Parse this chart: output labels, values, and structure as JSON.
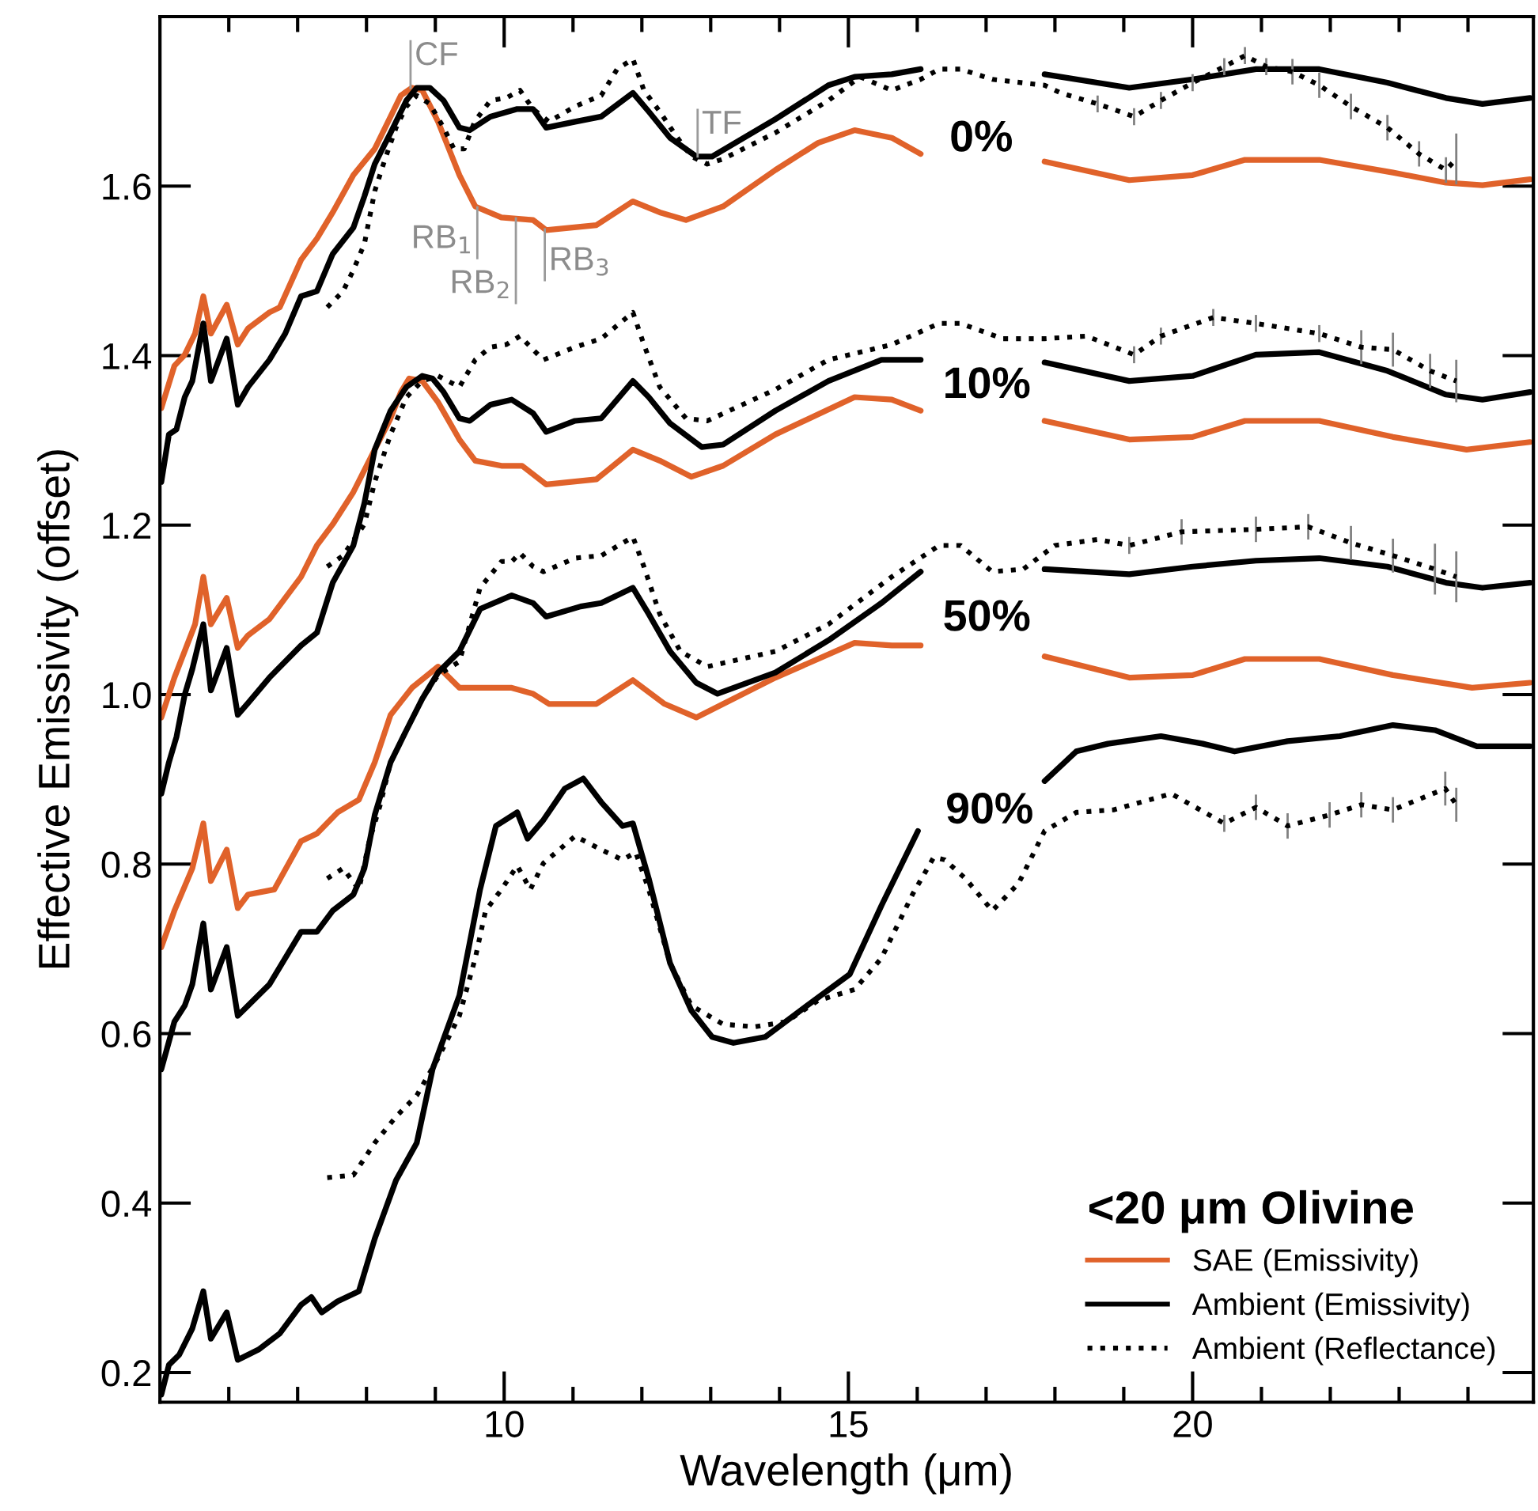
{
  "chart_data": {
    "type": "line",
    "xlabel": "Wavelength (μm)",
    "ylabel": "Effective Emissivity (offset)",
    "legend_title": "<20 μm Olivine",
    "legend": "bottom right",
    "grid": false,
    "xlim": [
      5,
      24.95
    ],
    "ylim": [
      0.165,
      1.8
    ],
    "xticks": [
      {
        "value": 6,
        "label": null
      },
      {
        "value": 7,
        "label": null
      },
      {
        "value": 8,
        "label": null
      },
      {
        "value": 9,
        "label": null
      },
      10,
      {
        "value": 11,
        "label": null
      },
      {
        "value": 12,
        "label": null
      },
      {
        "value": 13,
        "label": null
      },
      {
        "value": 14,
        "label": null
      },
      15,
      {
        "value": 16,
        "label": null
      },
      {
        "value": 17,
        "label": null
      },
      {
        "value": 18,
        "label": null
      },
      {
        "value": 19,
        "label": null
      },
      20,
      {
        "value": 21,
        "label": null
      },
      {
        "value": 22,
        "label": null
      },
      {
        "value": 23,
        "label": null
      },
      {
        "value": 24,
        "label": null
      }
    ],
    "yticks": [
      {
        "value": 0.2,
        "label": "0.2"
      },
      {
        "value": 0.4,
        "label": "0.4"
      },
      {
        "value": 0.6,
        "label": "0.6"
      },
      {
        "value": 0.8,
        "label": "0.8"
      },
      {
        "value": 1.0,
        "label": "1.0"
      },
      {
        "value": 1.2,
        "label": "1.2"
      },
      {
        "value": 1.4,
        "label": "1.4"
      },
      {
        "value": 1.6,
        "label": "1.6"
      }
    ],
    "annotations": [
      {
        "text": "CF",
        "x": 8.64,
        "y": 1.716
      },
      {
        "text": "RB$_{1}$",
        "x": 9.61,
        "y": 1.575
      },
      {
        "text": "RB$_{2}$",
        "x": 10.17,
        "y": 1.562
      },
      {
        "text": "RB$_{3}$",
        "x": 10.59,
        "y": 1.549
      },
      {
        "text": "TF",
        "x": 12.81,
        "y": 1.635
      },
      "0%",
      "10%",
      "50%",
      "90%"
    ],
    "series": [
      {
        "name": "SAE (Emissivity)",
        "color": "#e0622a",
        "line_style": "solid",
        "x": [
          5.02,
          5.21,
          5.36,
          5.51,
          5.63,
          5.74,
          5.97,
          6.13,
          6.28,
          6.59,
          6.74,
          7.05,
          7.28,
          7.51,
          7.81,
          8.12,
          8.35,
          8.5,
          8.66,
          8.81,
          9.04,
          9.35,
          9.58,
          9.96,
          10.42,
          10.61,
          11.34,
          11.87,
          12.26,
          12.64,
          13.18,
          13.94,
          14.56,
          15.09,
          15.63,
          16.05,
          17.0,
          17.85,
          19.08,
          20.0,
          20.76,
          21.84,
          22.91,
          23.68,
          24.21,
          24.9
        ],
        "values": [
          1.338,
          1.388,
          1.401,
          1.426,
          1.47,
          1.426,
          1.46,
          1.413,
          1.432,
          1.451,
          1.457,
          1.513,
          1.538,
          1.569,
          1.613,
          1.644,
          1.682,
          1.707,
          1.716,
          1.713,
          1.676,
          1.613,
          1.576,
          1.563,
          1.56,
          1.548,
          1.554,
          1.582,
          1.569,
          1.56,
          1.576,
          1.619,
          1.651,
          1.666,
          1.657,
          1.638,
          null,
          1.629,
          1.607,
          1.613,
          1.631,
          1.631,
          1.616,
          1.604,
          1.601,
          1.608
        ]
      },
      {
        "name": "Ambient (Emissivity)",
        "color": "#000000",
        "line_style": "solid",
        "x": [
          5.02,
          5.13,
          5.24,
          5.36,
          5.47,
          5.63,
          5.74,
          5.97,
          6.13,
          6.28,
          6.59,
          6.82,
          7.05,
          7.28,
          7.51,
          7.81,
          7.97,
          8.12,
          8.35,
          8.58,
          8.73,
          8.92,
          9.12,
          9.35,
          9.5,
          9.8,
          10.19,
          10.42,
          10.61,
          11.03,
          11.41,
          11.87,
          12.1,
          12.41,
          12.79,
          13.02,
          13.94,
          14.71,
          15.09,
          15.63,
          16.05,
          17.0,
          17.85,
          19.08,
          20.0,
          20.92,
          21.84,
          22.83,
          23.68,
          24.21,
          24.9
        ],
        "values": [
          1.251,
          1.307,
          1.313,
          1.351,
          1.37,
          1.438,
          1.37,
          1.42,
          1.342,
          1.363,
          1.395,
          1.426,
          1.47,
          1.476,
          1.52,
          1.551,
          1.588,
          1.626,
          1.663,
          1.701,
          1.716,
          1.716,
          1.701,
          1.669,
          1.666,
          1.682,
          1.691,
          1.691,
          1.669,
          1.676,
          1.682,
          1.71,
          1.688,
          1.657,
          1.635,
          1.635,
          1.679,
          1.719,
          1.729,
          1.732,
          1.738,
          null,
          1.732,
          1.716,
          1.726,
          1.738,
          1.738,
          1.722,
          1.704,
          1.697,
          1.704
        ]
      },
      {
        "name": "Ambient (Reflectance)",
        "color": "#000000",
        "line_style": "dotted",
        "x": [
          7.43,
          7.66,
          7.81,
          7.97,
          8.12,
          8.27,
          8.43,
          8.58,
          8.73,
          8.92,
          9.12,
          9.27,
          9.42,
          9.57,
          9.8,
          10.03,
          10.23,
          10.42,
          10.65,
          11.03,
          11.41,
          11.64,
          11.87,
          12.03,
          12.26,
          12.49,
          12.72,
          12.95,
          13.18,
          13.94,
          14.71,
          15.17,
          15.63,
          16.05,
          16.32,
          16.63,
          17.09,
          17.85,
          18.08,
          18.62,
          19.15,
          19.54,
          20.0,
          20.46,
          20.76,
          21.07,
          21.45,
          21.84,
          22.3,
          22.83,
          23.29,
          23.68,
          23.83
        ],
        "values": [
          1.457,
          1.476,
          1.501,
          1.532,
          1.594,
          1.632,
          1.669,
          1.694,
          1.707,
          1.697,
          1.669,
          1.644,
          1.644,
          1.676,
          1.701,
          1.704,
          1.713,
          1.691,
          1.676,
          1.694,
          1.707,
          1.738,
          1.75,
          1.713,
          1.688,
          1.66,
          1.635,
          1.626,
          1.632,
          1.663,
          1.701,
          1.729,
          1.713,
          1.726,
          1.738,
          1.738,
          1.726,
          1.719,
          1.71,
          1.697,
          1.682,
          1.701,
          1.722,
          1.741,
          1.754,
          1.741,
          1.735,
          1.719,
          1.694,
          1.669,
          1.638,
          1.619,
          1.632
        ],
        "errors": [
          null,
          null,
          null,
          null,
          null,
          null,
          null,
          null,
          null,
          null,
          null,
          null,
          null,
          null,
          null,
          null,
          null,
          null,
          null,
          null,
          null,
          null,
          null,
          null,
          null,
          null,
          null,
          null,
          null,
          null,
          null,
          null,
          null,
          null,
          null,
          null,
          null,
          null,
          null,
          0.01,
          0.01,
          0.01,
          0.01,
          0.01,
          0.01,
          0.01,
          0.015,
          0.015,
          0.015,
          0.015,
          0.015,
          0.015,
          0.03
        ]
      },
      {
        "color": "#e0622a",
        "line_style": "solid",
        "x": [
          5.02,
          5.21,
          5.51,
          5.63,
          5.74,
          5.97,
          6.13,
          6.28,
          6.59,
          7.05,
          7.28,
          7.51,
          7.81,
          8.12,
          8.35,
          8.5,
          8.62,
          8.81,
          9.04,
          9.35,
          9.58,
          9.96,
          10.26,
          10.61,
          11.34,
          11.87,
          12.26,
          12.72,
          13.18,
          13.94,
          15.09,
          15.63,
          16.05,
          17.0,
          17.85,
          19.08,
          20.0,
          20.76,
          21.84,
          22.91,
          23.98,
          24.9
        ],
        "values": [
          0.973,
          1.02,
          1.083,
          1.139,
          1.083,
          1.114,
          1.055,
          1.07,
          1.089,
          1.139,
          1.176,
          1.201,
          1.239,
          1.289,
          1.326,
          1.357,
          1.373,
          1.37,
          1.345,
          1.301,
          1.276,
          1.27,
          1.27,
          1.248,
          1.254,
          1.289,
          1.276,
          1.257,
          1.27,
          1.307,
          1.351,
          1.348,
          1.335,
          null,
          1.323,
          1.301,
          1.304,
          1.323,
          1.323,
          1.304,
          1.289,
          1.298
        ]
      },
      {
        "color": "#000000",
        "line_style": "solid",
        "x": [
          5.02,
          5.13,
          5.24,
          5.36,
          5.47,
          5.63,
          5.74,
          5.97,
          6.13,
          6.28,
          6.59,
          7.05,
          7.28,
          7.51,
          7.81,
          7.97,
          8.12,
          8.35,
          8.58,
          8.81,
          8.96,
          9.12,
          9.35,
          9.5,
          9.8,
          10.11,
          10.42,
          10.61,
          11.03,
          11.41,
          11.87,
          12.1,
          12.41,
          12.87,
          13.18,
          13.94,
          14.71,
          15.48,
          16.05,
          17.0,
          17.85,
          19.08,
          20.0,
          20.92,
          21.84,
          22.83,
          23.68,
          24.21,
          24.9
        ],
        "values": [
          0.883,
          0.92,
          0.95,
          1.0,
          1.03,
          1.083,
          1.005,
          1.055,
          0.976,
          0.99,
          1.02,
          1.058,
          1.073,
          1.132,
          1.176,
          1.226,
          1.289,
          1.335,
          1.363,
          1.376,
          1.373,
          1.357,
          1.326,
          1.323,
          1.342,
          1.348,
          1.332,
          1.31,
          1.323,
          1.326,
          1.37,
          1.351,
          1.32,
          1.292,
          1.295,
          1.335,
          1.37,
          1.395,
          1.395,
          null,
          1.392,
          1.37,
          1.376,
          1.401,
          1.404,
          1.382,
          1.354,
          1.348,
          1.357
        ]
      },
      {
        "color": "#000000",
        "line_style": "dotted",
        "x": [
          7.43,
          7.66,
          7.97,
          8.12,
          8.35,
          8.58,
          8.81,
          9.04,
          9.35,
          9.58,
          9.8,
          10.03,
          10.23,
          10.42,
          10.57,
          11.03,
          11.41,
          11.87,
          12.03,
          12.26,
          12.64,
          12.95,
          13.94,
          14.71,
          15.63,
          16.32,
          16.63,
          17.24,
          17.85,
          18.46,
          19.15,
          19.54,
          20.3,
          20.92,
          21.84,
          22.45,
          22.91,
          23.45,
          23.83
        ],
        "values": [
          1.151,
          1.164,
          1.201,
          1.251,
          1.307,
          1.351,
          1.37,
          1.376,
          1.363,
          1.395,
          1.41,
          1.413,
          1.423,
          1.407,
          1.395,
          1.41,
          1.42,
          1.451,
          1.413,
          1.363,
          1.326,
          1.323,
          1.36,
          1.395,
          1.413,
          1.438,
          1.438,
          1.42,
          1.42,
          1.423,
          1.401,
          1.423,
          1.445,
          1.438,
          1.426,
          1.41,
          1.407,
          1.382,
          1.37
        ],
        "errors": [
          null,
          null,
          null,
          null,
          null,
          null,
          null,
          null,
          null,
          null,
          null,
          null,
          null,
          null,
          null,
          null,
          null,
          null,
          null,
          null,
          null,
          null,
          null,
          null,
          null,
          null,
          null,
          null,
          null,
          null,
          0.01,
          0.01,
          0.01,
          0.01,
          0.01,
          0.02,
          0.02,
          0.02,
          0.025
        ]
      },
      {
        "color": "#e0622a",
        "line_style": "solid",
        "x": [
          5.02,
          5.21,
          5.47,
          5.63,
          5.74,
          5.97,
          6.13,
          6.28,
          6.66,
          7.05,
          7.28,
          7.58,
          7.89,
          8.12,
          8.35,
          8.66,
          9.04,
          9.35,
          10.11,
          10.42,
          10.65,
          11.34,
          11.87,
          12.33,
          12.79,
          13.94,
          15.09,
          15.63,
          16.05,
          17.0,
          17.85,
          19.08,
          20.0,
          20.76,
          21.84,
          22.91,
          24.06,
          24.9
        ],
        "values": [
          0.702,
          0.745,
          0.795,
          0.848,
          0.78,
          0.817,
          0.748,
          0.764,
          0.77,
          0.827,
          0.836,
          0.861,
          0.876,
          0.92,
          0.976,
          1.008,
          1.033,
          1.008,
          1.008,
          1.001,
          0.989,
          0.989,
          1.017,
          0.989,
          0.973,
          1.02,
          1.061,
          1.058,
          1.058,
          null,
          1.045,
          1.02,
          1.023,
          1.042,
          1.042,
          1.023,
          1.008,
          1.014
        ]
      },
      {
        "color": "#000000",
        "line_style": "solid",
        "x": [
          5.02,
          5.21,
          5.36,
          5.47,
          5.63,
          5.74,
          5.97,
          6.13,
          6.28,
          6.59,
          7.05,
          7.28,
          7.51,
          7.81,
          7.97,
          8.12,
          8.35,
          8.58,
          8.81,
          9.04,
          9.35,
          9.65,
          10.11,
          10.42,
          10.61,
          11.11,
          11.41,
          11.87,
          12.1,
          12.41,
          12.79,
          13.1,
          13.94,
          14.71,
          15.48,
          16.05,
          17.0,
          17.85,
          19.08,
          20.0,
          20.92,
          21.84,
          22.83,
          23.68,
          24.21,
          24.9
        ],
        "values": [
          0.558,
          0.614,
          0.633,
          0.658,
          0.73,
          0.652,
          0.702,
          0.621,
          0.633,
          0.658,
          0.72,
          0.72,
          0.745,
          0.764,
          0.795,
          0.858,
          0.92,
          0.958,
          0.995,
          1.026,
          1.051,
          1.101,
          1.117,
          1.108,
          1.092,
          1.104,
          1.108,
          1.126,
          1.095,
          1.051,
          1.014,
          1.001,
          1.026,
          1.064,
          1.108,
          1.145,
          null,
          1.148,
          1.142,
          1.151,
          1.158,
          1.161,
          1.151,
          1.132,
          1.126,
          1.132
        ]
      },
      {
        "color": "#000000",
        "line_style": "dotted",
        "x": [
          7.43,
          7.66,
          7.89,
          8.04,
          8.2,
          8.35,
          8.58,
          8.81,
          9.04,
          9.35,
          9.65,
          9.96,
          10.11,
          10.23,
          10.42,
          10.57,
          11.03,
          11.41,
          11.87,
          12.03,
          12.26,
          12.56,
          12.95,
          13.94,
          14.71,
          15.63,
          16.32,
          16.63,
          17.09,
          17.54,
          18.0,
          18.62,
          19.08,
          19.84,
          20.92,
          21.68,
          22.3,
          22.91,
          23.52,
          23.83
        ],
        "values": [
          0.783,
          0.795,
          0.77,
          0.827,
          0.87,
          0.92,
          0.958,
          0.995,
          1.023,
          1.039,
          1.126,
          1.157,
          1.157,
          1.167,
          1.151,
          1.145,
          1.161,
          1.164,
          1.186,
          1.151,
          1.095,
          1.051,
          1.033,
          1.051,
          1.083,
          1.139,
          1.176,
          1.176,
          1.145,
          1.148,
          1.176,
          1.183,
          1.176,
          1.192,
          1.195,
          1.198,
          1.179,
          1.164,
          1.148,
          1.139
        ],
        "errors": [
          null,
          null,
          null,
          null,
          null,
          null,
          null,
          null,
          null,
          null,
          null,
          null,
          null,
          null,
          null,
          null,
          null,
          null,
          null,
          null,
          null,
          null,
          null,
          null,
          null,
          null,
          null,
          null,
          null,
          null,
          null,
          null,
          0.01,
          0.015,
          0.015,
          0.015,
          0.02,
          0.02,
          0.03,
          0.03
        ]
      },
      {
        "color": "#000000",
        "line_style": "solid",
        "x": [
          5.02,
          5.13,
          5.28,
          5.47,
          5.63,
          5.74,
          5.97,
          6.13,
          6.43,
          6.74,
          7.05,
          7.2,
          7.35,
          7.58,
          7.89,
          8.12,
          8.43,
          8.73,
          8.96,
          9.35,
          9.65,
          9.88,
          10.19,
          10.34,
          10.57,
          10.88,
          11.15,
          11.41,
          11.72,
          11.87,
          12.1,
          12.41,
          12.72,
          13.02,
          13.33,
          13.79,
          14.4,
          15.02,
          15.48,
          16.01,
          17.0,
          17.85,
          18.31,
          18.77,
          19.54,
          20.15,
          20.61,
          21.38,
          22.14,
          22.91,
          23.52,
          24.13,
          24.9
        ],
        "values": [
          0.174,
          0.209,
          0.221,
          0.252,
          0.296,
          0.24,
          0.271,
          0.215,
          0.227,
          0.246,
          0.28,
          0.289,
          0.271,
          0.284,
          0.296,
          0.358,
          0.427,
          0.471,
          0.558,
          0.645,
          0.77,
          0.845,
          0.861,
          0.83,
          0.852,
          0.889,
          0.901,
          0.873,
          0.845,
          0.848,
          0.783,
          0.683,
          0.627,
          0.596,
          0.589,
          0.596,
          0.633,
          0.67,
          0.751,
          0.839,
          null,
          0.898,
          0.933,
          0.942,
          0.951,
          0.942,
          0.933,
          0.945,
          0.951,
          0.964,
          0.958,
          0.939,
          0.939
        ]
      },
      {
        "color": "#000000",
        "line_style": "dotted",
        "x": [
          7.43,
          7.81,
          8.12,
          8.43,
          8.73,
          9.04,
          9.35,
          9.58,
          9.73,
          9.96,
          10.19,
          10.38,
          10.57,
          11.03,
          11.41,
          11.72,
          11.91,
          12.1,
          12.41,
          12.72,
          13.18,
          13.64,
          14.1,
          14.56,
          15.09,
          15.48,
          15.93,
          16.24,
          16.4,
          16.7,
          17.09,
          17.47,
          17.85,
          18.31,
          18.85,
          19.69,
          20.46,
          20.92,
          21.38,
          21.99,
          22.45,
          22.91,
          23.67,
          23.83
        ],
        "values": [
          0.43,
          0.433,
          0.471,
          0.502,
          0.527,
          0.571,
          0.621,
          0.689,
          0.745,
          0.77,
          0.798,
          0.77,
          0.801,
          0.833,
          0.817,
          0.805,
          0.814,
          0.77,
          0.683,
          0.633,
          0.611,
          0.608,
          0.614,
          0.639,
          0.652,
          0.689,
          0.764,
          0.808,
          0.805,
          0.783,
          0.745,
          0.777,
          0.839,
          0.861,
          0.864,
          0.883,
          0.848,
          0.867,
          0.845,
          0.858,
          0.87,
          0.864,
          0.889,
          0.87
        ],
        "errors": [
          null,
          null,
          null,
          null,
          null,
          null,
          null,
          null,
          null,
          null,
          null,
          null,
          null,
          null,
          null,
          null,
          null,
          null,
          null,
          null,
          null,
          null,
          null,
          null,
          null,
          null,
          null,
          null,
          null,
          null,
          null,
          null,
          null,
          null,
          null,
          null,
          0.01,
          0.015,
          0.015,
          0.015,
          0.015,
          0.015,
          0.02,
          0.02
        ]
      }
    ]
  }
}
